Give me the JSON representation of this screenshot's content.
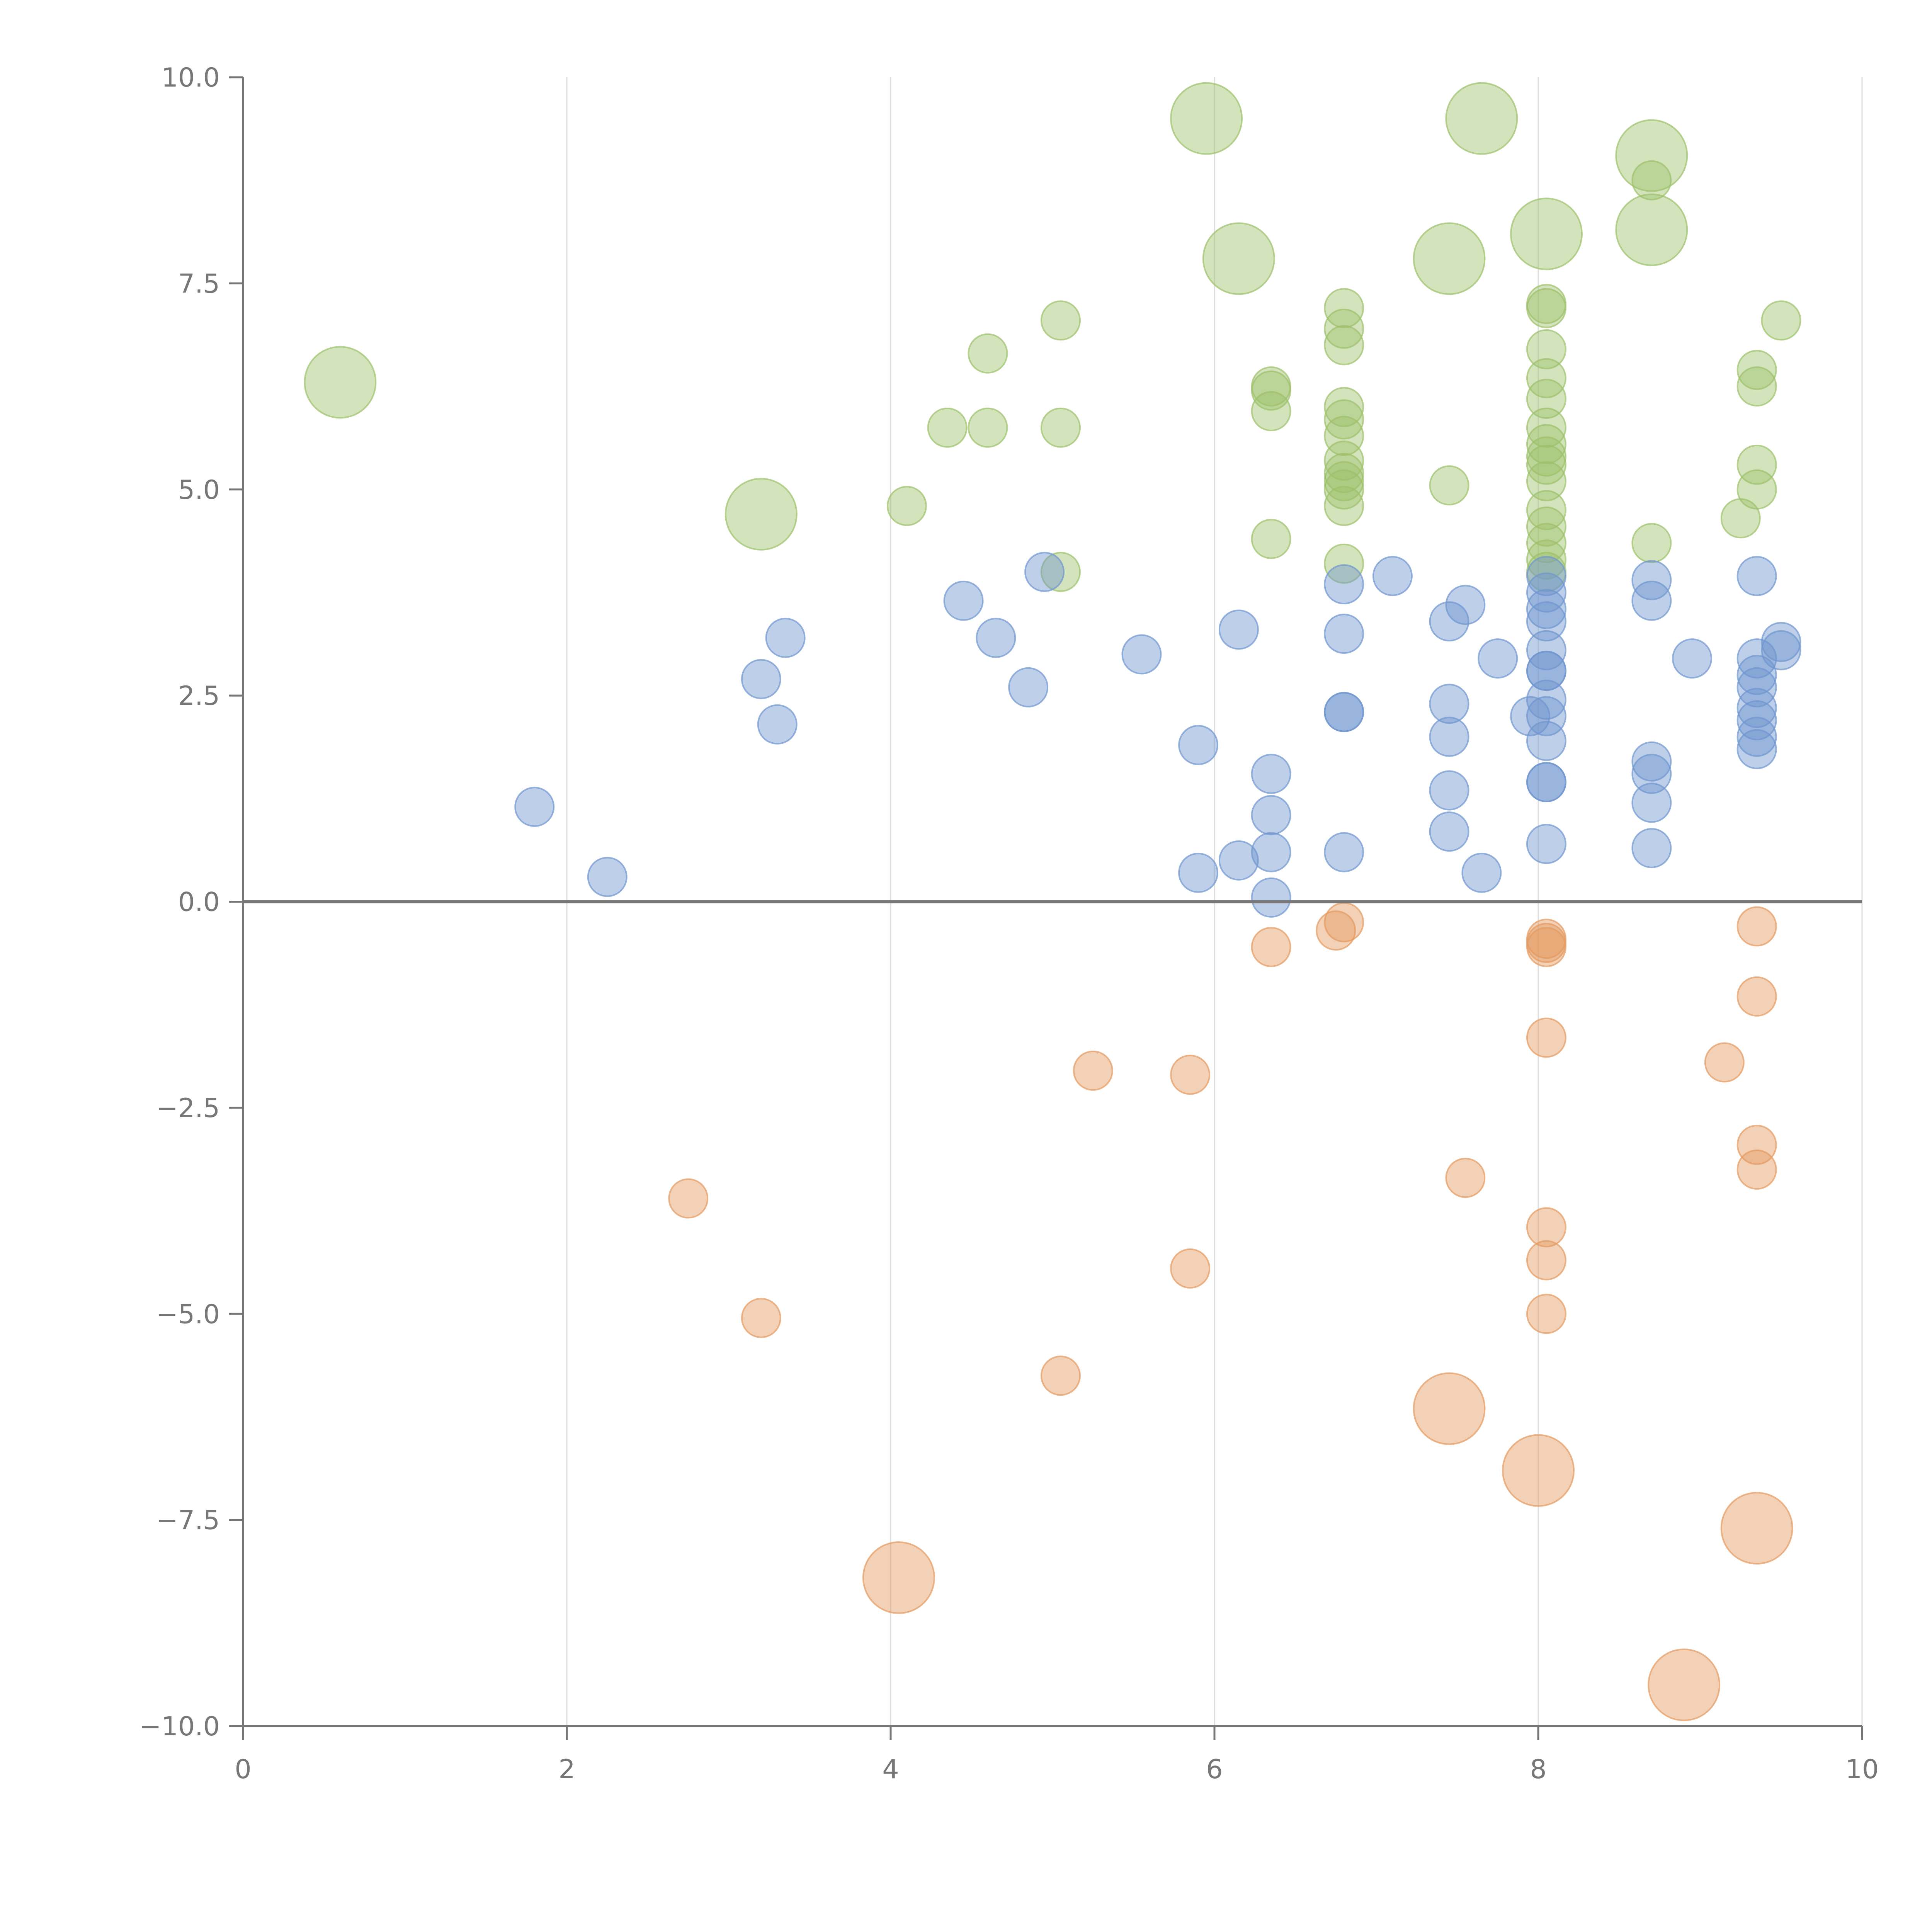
{
  "chart_data": {
    "type": "scatter",
    "title": "",
    "xlabel": "",
    "ylabel": "",
    "xlim": [
      0,
      10
    ],
    "ylim": [
      -10,
      10
    ],
    "grid": "vertical lines at x ticks",
    "zero_line": true,
    "x_ticks": [
      {
        "value": 0,
        "label": "0"
      },
      {
        "value": 2,
        "label": "2"
      },
      {
        "value": 4,
        "label": "4"
      },
      {
        "value": 6,
        "label": "6"
      },
      {
        "value": 8,
        "label": "8"
      },
      {
        "value": 10,
        "label": "10"
      }
    ],
    "y_ticks": [
      {
        "value": 10,
        "label": "10.0"
      },
      {
        "value": 7.5,
        "label": "7.5"
      },
      {
        "value": 5,
        "label": "5.0"
      },
      {
        "value": 2.5,
        "label": "2.5"
      },
      {
        "value": 0,
        "label": "0.0"
      },
      {
        "value": -2.5,
        "label": "−2.5"
      },
      {
        "value": -5,
        "label": "−5.0"
      },
      {
        "value": -7.5,
        "label": "−7.5"
      },
      {
        "value": -10,
        "label": "−10.0"
      }
    ],
    "colors": {
      "green": "#9dc06a",
      "blue": "#6f95cf",
      "orange": "#e49a5f",
      "axis": "#777777",
      "grid": "#dddddd"
    },
    "series": [
      {
        "name": "green",
        "color": "#9dc06a",
        "points": [
          [
            0.6,
            6.3,
            2
          ],
          [
            3.2,
            4.7,
            2
          ],
          [
            4.1,
            4.8,
            1
          ],
          [
            4.35,
            5.75,
            1
          ],
          [
            4.6,
            5.75,
            1
          ],
          [
            4.6,
            6.65,
            1
          ],
          [
            5.05,
            7.05,
            1
          ],
          [
            5.05,
            5.75,
            1
          ],
          [
            5.05,
            4.0,
            1
          ],
          [
            5.95,
            9.5,
            2
          ],
          [
            6.15,
            7.8,
            2
          ],
          [
            6.35,
            6.25,
            1
          ],
          [
            6.35,
            6.2,
            1
          ],
          [
            6.35,
            5.95,
            1
          ],
          [
            6.35,
            4.4,
            1
          ],
          [
            6.8,
            7.2,
            1
          ],
          [
            6.8,
            6.95,
            1
          ],
          [
            6.8,
            6.75,
            1
          ],
          [
            6.8,
            6.0,
            1
          ],
          [
            6.8,
            5.85,
            1
          ],
          [
            6.8,
            5.65,
            1
          ],
          [
            6.8,
            5.35,
            1
          ],
          [
            6.8,
            5.2,
            1
          ],
          [
            6.8,
            5.1,
            1
          ],
          [
            6.8,
            5.0,
            1
          ],
          [
            6.8,
            4.8,
            1
          ],
          [
            6.8,
            4.1,
            1
          ],
          [
            7.45,
            5.05,
            1
          ],
          [
            7.45,
            7.8,
            2
          ],
          [
            7.65,
            9.5,
            2
          ],
          [
            8.05,
            8.1,
            2
          ],
          [
            8.05,
            7.25,
            1
          ],
          [
            8.05,
            7.2,
            1
          ],
          [
            8.05,
            6.7,
            1
          ],
          [
            8.05,
            6.35,
            1
          ],
          [
            8.05,
            6.1,
            1
          ],
          [
            8.05,
            5.75,
            1
          ],
          [
            8.05,
            5.55,
            1
          ],
          [
            8.05,
            5.4,
            1
          ],
          [
            8.05,
            5.3,
            1
          ],
          [
            8.05,
            5.1,
            1
          ],
          [
            8.05,
            4.75,
            1
          ],
          [
            8.05,
            4.55,
            1
          ],
          [
            8.05,
            4.35,
            1
          ],
          [
            8.05,
            4.15,
            1
          ],
          [
            8.05,
            4.0,
            1
          ],
          [
            8.7,
            9.05,
            2
          ],
          [
            8.7,
            8.75,
            1
          ],
          [
            8.7,
            8.15,
            2
          ],
          [
            8.7,
            4.35,
            1
          ],
          [
            9.25,
            4.65,
            1
          ],
          [
            9.35,
            6.45,
            1
          ],
          [
            9.35,
            6.25,
            1
          ],
          [
            9.35,
            5.3,
            1
          ],
          [
            9.35,
            5.0,
            1
          ],
          [
            9.5,
            7.05,
            1
          ]
        ]
      },
      {
        "name": "blue",
        "color": "#6f95cf",
        "points": [
          [
            1.8,
            1.15,
            1
          ],
          [
            2.25,
            0.3,
            1
          ],
          [
            3.2,
            2.7,
            1
          ],
          [
            3.35,
            3.2,
            1
          ],
          [
            3.3,
            2.15,
            1
          ],
          [
            4.45,
            3.65,
            1
          ],
          [
            4.65,
            3.2,
            1
          ],
          [
            4.85,
            2.6,
            1
          ],
          [
            4.95,
            4.0,
            1
          ],
          [
            5.55,
            3.0,
            1
          ],
          [
            5.9,
            1.9,
            1
          ],
          [
            5.9,
            0.35,
            1
          ],
          [
            6.15,
            3.3,
            1
          ],
          [
            6.15,
            0.5,
            1
          ],
          [
            6.35,
            1.55,
            1
          ],
          [
            6.35,
            1.05,
            1
          ],
          [
            6.35,
            0.6,
            1
          ],
          [
            6.35,
            0.05,
            1
          ],
          [
            6.8,
            3.85,
            1
          ],
          [
            6.8,
            3.25,
            1
          ],
          [
            6.8,
            2.3,
            1
          ],
          [
            6.8,
            2.3,
            1
          ],
          [
            6.8,
            0.6,
            1
          ],
          [
            7.1,
            3.95,
            1
          ],
          [
            7.45,
            3.4,
            1
          ],
          [
            7.45,
            2.4,
            1
          ],
          [
            7.45,
            2.0,
            1
          ],
          [
            7.45,
            1.35,
            1
          ],
          [
            7.45,
            0.85,
            1
          ],
          [
            7.55,
            3.6,
            1
          ],
          [
            7.65,
            0.35,
            1
          ],
          [
            7.75,
            2.95,
            1
          ],
          [
            7.95,
            2.25,
            1
          ],
          [
            8.05,
            3.95,
            1
          ],
          [
            8.05,
            3.75,
            1
          ],
          [
            8.05,
            3.55,
            1
          ],
          [
            8.05,
            3.4,
            1
          ],
          [
            8.05,
            3.05,
            1
          ],
          [
            8.05,
            2.8,
            1
          ],
          [
            8.05,
            2.8,
            1
          ],
          [
            8.05,
            2.45,
            1
          ],
          [
            8.05,
            2.25,
            1
          ],
          [
            8.05,
            1.95,
            1
          ],
          [
            8.05,
            1.45,
            1
          ],
          [
            8.05,
            1.45,
            1
          ],
          [
            8.05,
            0.7,
            1
          ],
          [
            8.7,
            3.9,
            1
          ],
          [
            8.7,
            3.65,
            1
          ],
          [
            8.7,
            1.7,
            1
          ],
          [
            8.7,
            1.55,
            1
          ],
          [
            8.7,
            1.2,
            1
          ],
          [
            8.7,
            0.65,
            1
          ],
          [
            8.95,
            2.95,
            1
          ],
          [
            9.35,
            3.95,
            1
          ],
          [
            9.35,
            2.95,
            1
          ],
          [
            9.35,
            2.75,
            1
          ],
          [
            9.35,
            2.6,
            1
          ],
          [
            9.35,
            2.35,
            1
          ],
          [
            9.35,
            2.2,
            1
          ],
          [
            9.35,
            2.0,
            1
          ],
          [
            9.35,
            1.85,
            1
          ],
          [
            9.5,
            3.15,
            1
          ],
          [
            9.5,
            3.05,
            1
          ]
        ]
      },
      {
        "name": "orange",
        "color": "#e49a5f",
        "points": [
          [
            2.75,
            -3.6,
            1
          ],
          [
            3.2,
            -5.05,
            1
          ],
          [
            4.05,
            -8.2,
            2
          ],
          [
            5.05,
            -5.75,
            1
          ],
          [
            5.25,
            -2.05,
            1
          ],
          [
            5.85,
            -2.1,
            1
          ],
          [
            5.85,
            -4.45,
            1
          ],
          [
            6.35,
            -0.55,
            1
          ],
          [
            6.75,
            -0.35,
            1
          ],
          [
            6.8,
            -0.25,
            1
          ],
          [
            7.45,
            -6.15,
            2
          ],
          [
            7.55,
            -3.35,
            1
          ],
          [
            8.0,
            -6.9,
            2
          ],
          [
            8.05,
            -0.45,
            1
          ],
          [
            8.05,
            -0.5,
            1
          ],
          [
            8.05,
            -0.55,
            1
          ],
          [
            8.05,
            -1.65,
            1
          ],
          [
            8.05,
            -3.95,
            1
          ],
          [
            8.05,
            -4.35,
            1
          ],
          [
            8.05,
            -5.0,
            1
          ],
          [
            8.9,
            -9.5,
            2
          ],
          [
            9.15,
            -1.95,
            1
          ],
          [
            9.35,
            -0.3,
            1
          ],
          [
            9.35,
            -1.15,
            1
          ],
          [
            9.35,
            -2.95,
            1
          ],
          [
            9.35,
            -3.25,
            1
          ],
          [
            9.35,
            -7.6,
            2
          ]
        ]
      }
    ]
  }
}
